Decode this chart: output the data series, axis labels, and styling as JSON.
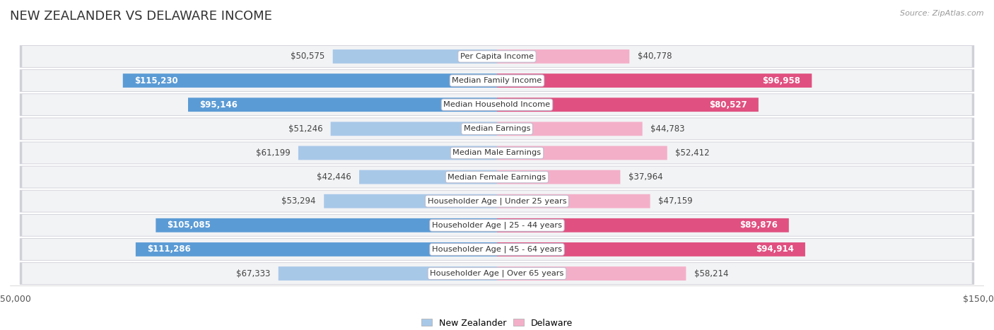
{
  "title": "NEW ZEALANDER VS DELAWARE INCOME",
  "source": "Source: ZipAtlas.com",
  "categories": [
    "Per Capita Income",
    "Median Family Income",
    "Median Household Income",
    "Median Earnings",
    "Median Male Earnings",
    "Median Female Earnings",
    "Householder Age | Under 25 years",
    "Householder Age | 25 - 44 years",
    "Householder Age | 45 - 64 years",
    "Householder Age | Over 65 years"
  ],
  "nz_values": [
    50575,
    115230,
    95146,
    51246,
    61199,
    42446,
    53294,
    105085,
    111286,
    67333
  ],
  "de_values": [
    40778,
    96958,
    80527,
    44783,
    52412,
    37964,
    47159,
    89876,
    94914,
    58214
  ],
  "nz_labels": [
    "$50,575",
    "$115,230",
    "$95,146",
    "$51,246",
    "$61,199",
    "$42,446",
    "$53,294",
    "$105,085",
    "$111,286",
    "$67,333"
  ],
  "de_labels": [
    "$40,778",
    "$96,958",
    "$80,527",
    "$44,783",
    "$52,412",
    "$37,964",
    "$47,159",
    "$89,876",
    "$94,914",
    "$58,214"
  ],
  "nz_large": [
    false,
    true,
    true,
    false,
    false,
    false,
    false,
    true,
    true,
    false
  ],
  "de_large": [
    false,
    true,
    true,
    false,
    false,
    false,
    false,
    true,
    true,
    false
  ],
  "nz_color_light": "#a8c8e8",
  "nz_color_dark": "#5b9bd5",
  "de_color_light": "#f4afc8",
  "de_color_dark": "#e05080",
  "max_value": 150000,
  "bar_height": 0.58,
  "title_fontsize": 13,
  "label_fontsize": 8.5,
  "tick_fontsize": 9,
  "legend_fontsize": 9
}
